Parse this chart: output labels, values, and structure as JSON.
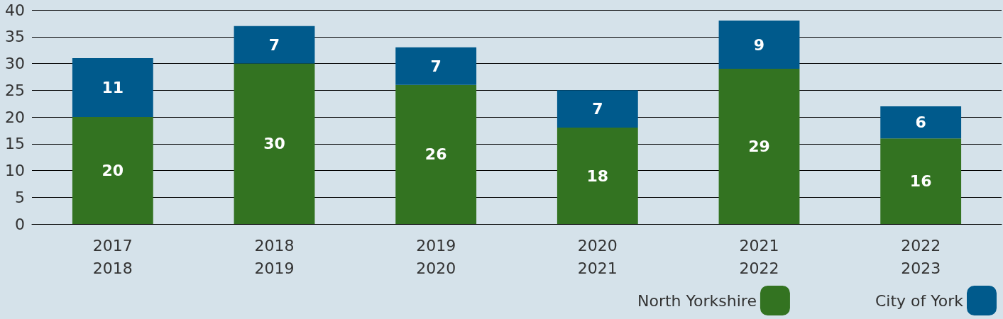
{
  "chart_data": {
    "type": "bar",
    "stacked": true,
    "categories": [
      "2017\n2018",
      "2018\n2019",
      "2019\n2020",
      "2020\n2021",
      "2021\n2022",
      "2022\n2023"
    ],
    "series": [
      {
        "name": "North Yorkshire",
        "color": "#337321",
        "values": [
          20,
          30,
          26,
          18,
          29,
          16
        ]
      },
      {
        "name": "City of York",
        "color": "#005a8c",
        "values": [
          11,
          7,
          7,
          7,
          9,
          6
        ]
      }
    ],
    "ylim": [
      0,
      40
    ],
    "yticks": [
      0,
      5,
      10,
      15,
      20,
      25,
      30,
      35,
      40
    ],
    "grid": "y",
    "legend": "bottom right",
    "data_labels": true
  }
}
